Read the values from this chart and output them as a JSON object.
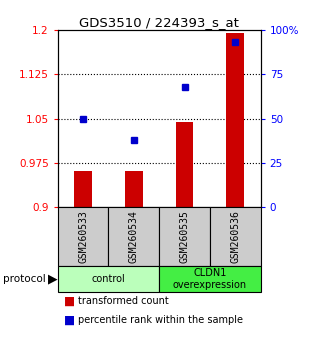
{
  "title": "GDS3510 / 224393_s_at",
  "samples": [
    "GSM260533",
    "GSM260534",
    "GSM260535",
    "GSM260536"
  ],
  "bar_values": [
    0.962,
    0.961,
    1.045,
    1.195
  ],
  "dot_values": [
    50,
    38,
    68,
    93
  ],
  "ylim_left": [
    0.9,
    1.2
  ],
  "ylim_right": [
    0,
    100
  ],
  "yticks_left": [
    0.9,
    0.975,
    1.05,
    1.125,
    1.2
  ],
  "ytick_labels_left": [
    "0.9",
    "0.975",
    "1.05",
    "1.125",
    "1.2"
  ],
  "yticks_right": [
    0,
    25,
    50,
    75,
    100
  ],
  "ytick_labels_right": [
    "0",
    "25",
    "50",
    "75",
    "100%"
  ],
  "hlines": [
    0.975,
    1.05,
    1.125
  ],
  "bar_color": "#cc0000",
  "dot_color": "#0000cc",
  "groups": [
    {
      "label": "control",
      "indices": [
        0,
        1
      ],
      "color": "#bbffbb"
    },
    {
      "label": "CLDN1\noverexpression",
      "indices": [
        2,
        3
      ],
      "color": "#44ee44"
    }
  ],
  "sample_box_color": "#cccccc",
  "protocol_label": "protocol",
  "legend_bar_label": "transformed count",
  "legend_dot_label": "percentile rank within the sample",
  "bar_width": 0.35,
  "bar_bottom": 0.9
}
